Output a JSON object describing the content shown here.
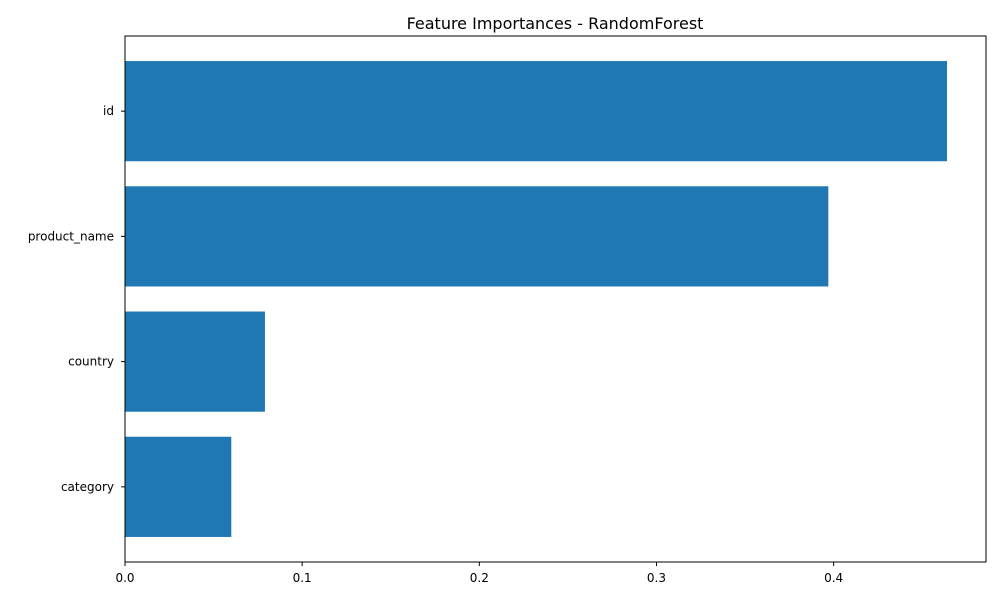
{
  "chart_data": {
    "type": "bar",
    "orientation": "horizontal",
    "title": "Feature Importances - RandomForest",
    "xlabel": "",
    "ylabel": "",
    "categories": [
      "id",
      "product_name",
      "country",
      "category"
    ],
    "values": [
      0.464,
      0.397,
      0.079,
      0.06
    ],
    "xlim": [
      0.0,
      0.486
    ],
    "xticks": [
      0.0,
      0.1,
      0.2,
      0.3,
      0.4
    ],
    "xtick_labels": [
      "0.0",
      "0.1",
      "0.2",
      "0.3",
      "0.4"
    ],
    "grid": false,
    "legend": "none",
    "bar_color": "#1f77b4"
  }
}
